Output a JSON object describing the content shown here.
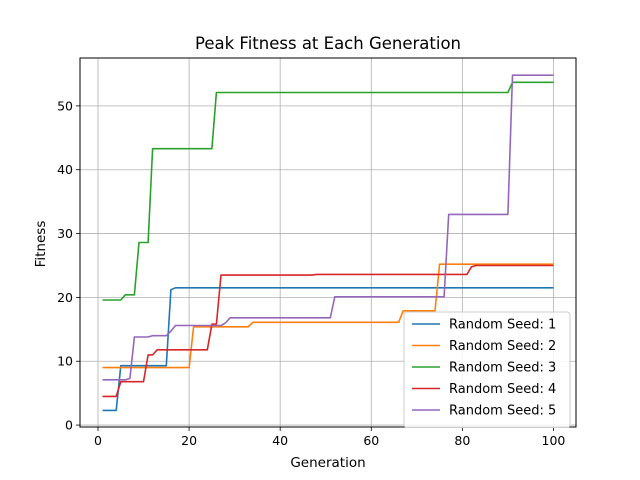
{
  "chart_data": {
    "type": "line",
    "title": "Peak Fitness at Each Generation",
    "xlabel": "Generation",
    "ylabel": "Fitness",
    "xlim": [
      -3.95,
      104.95
    ],
    "ylim": [
      -0.3,
      57.5
    ],
    "xticks": [
      0,
      20,
      40,
      60,
      80,
      100
    ],
    "yticks": [
      0,
      10,
      20,
      30,
      40,
      50
    ],
    "grid": true,
    "legend_position": "lower-right",
    "series": [
      {
        "name": "Random Seed: 1",
        "color": "#1f77b4",
        "points": [
          [
            1,
            2.3
          ],
          [
            4,
            2.3
          ],
          [
            5,
            9.3
          ],
          [
            15,
            9.3
          ],
          [
            16,
            21.2
          ],
          [
            17,
            21.5
          ],
          [
            100,
            21.5
          ]
        ]
      },
      {
        "name": "Random Seed: 2",
        "color": "#ff7f0e",
        "points": [
          [
            1,
            9.0
          ],
          [
            20,
            9.0
          ],
          [
            21,
            15.4
          ],
          [
            33,
            15.4
          ],
          [
            34,
            16.1
          ],
          [
            66,
            16.1
          ],
          [
            67,
            17.9
          ],
          [
            74,
            17.9
          ],
          [
            75,
            25.2
          ],
          [
            100,
            25.2
          ]
        ]
      },
      {
        "name": "Random Seed: 3",
        "color": "#2ca02c",
        "points": [
          [
            1,
            19.6
          ],
          [
            5,
            19.6
          ],
          [
            6,
            20.4
          ],
          [
            8,
            20.4
          ],
          [
            9,
            28.6
          ],
          [
            11,
            28.6
          ],
          [
            12,
            43.3
          ],
          [
            25,
            43.3
          ],
          [
            26,
            52.1
          ],
          [
            90,
            52.1
          ],
          [
            91,
            53.7
          ],
          [
            100,
            53.7
          ]
        ]
      },
      {
        "name": "Random Seed: 4",
        "color": "#d62728",
        "points": [
          [
            1,
            4.5
          ],
          [
            4,
            4.5
          ],
          [
            5,
            6.8
          ],
          [
            10,
            6.8
          ],
          [
            11,
            11.0
          ],
          [
            12,
            11.0
          ],
          [
            13,
            11.8
          ],
          [
            24,
            11.8
          ],
          [
            25,
            15.8
          ],
          [
            26,
            15.8
          ],
          [
            27,
            23.5
          ],
          [
            47,
            23.5
          ],
          [
            48,
            23.6
          ],
          [
            81,
            23.6
          ],
          [
            82,
            24.8
          ],
          [
            83,
            25.0
          ],
          [
            100,
            25.0
          ]
        ]
      },
      {
        "name": "Random Seed: 5",
        "color": "#9467bd",
        "points": [
          [
            1,
            7.1
          ],
          [
            6,
            7.1
          ],
          [
            7,
            7.3
          ],
          [
            8,
            13.8
          ],
          [
            11,
            13.8
          ],
          [
            12,
            14.0
          ],
          [
            15,
            14.0
          ],
          [
            16,
            14.7
          ],
          [
            17,
            15.6
          ],
          [
            27,
            15.6
          ],
          [
            28,
            16.0
          ],
          [
            29,
            16.8
          ],
          [
            51,
            16.8
          ],
          [
            52,
            20.1
          ],
          [
            76,
            20.1
          ],
          [
            77,
            33.0
          ],
          [
            90,
            33.0
          ],
          [
            91,
            54.8
          ],
          [
            100,
            54.8
          ]
        ]
      }
    ]
  }
}
